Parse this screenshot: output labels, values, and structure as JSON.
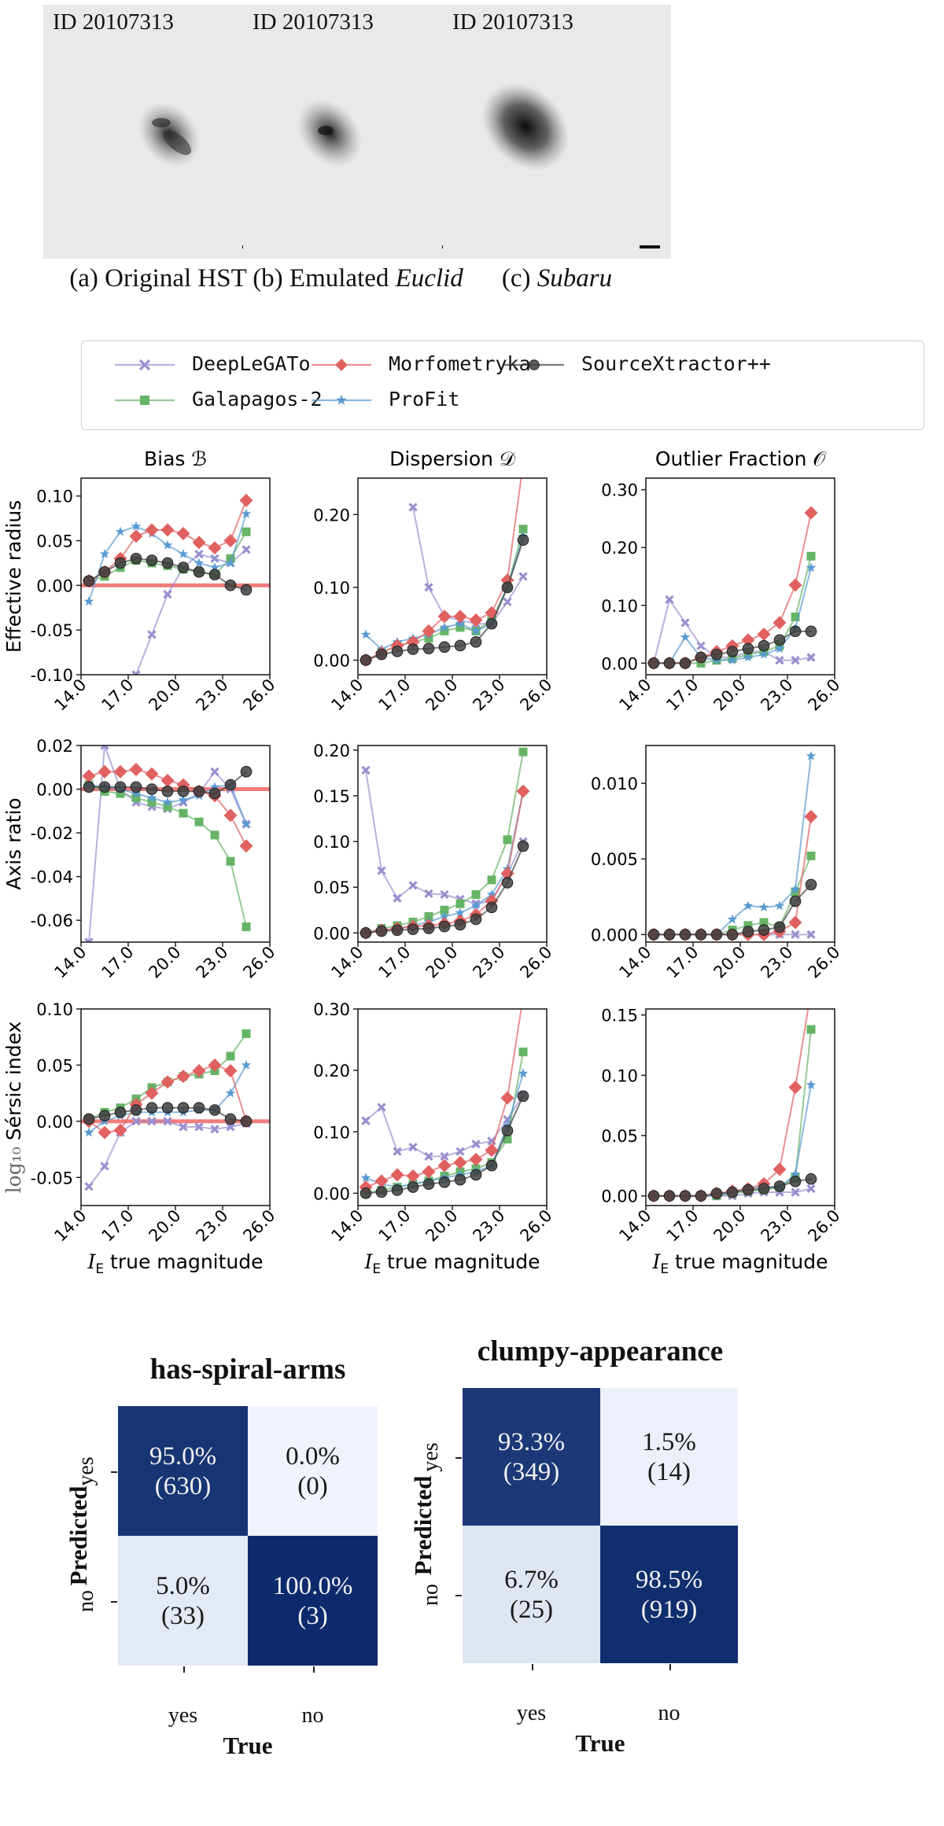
{
  "thumbnails": [
    {
      "id": "ID 20107313",
      "caption_prefix": "(a) ",
      "caption_main": "Original HST",
      "caption_italic": ""
    },
    {
      "id": "ID 20107313",
      "caption_prefix": "(b) ",
      "caption_main": "Emulated ",
      "caption_italic": "Euclid"
    },
    {
      "id": "ID 20107313",
      "caption_prefix": "(c) ",
      "caption_main": "",
      "caption_italic": "Subaru"
    }
  ],
  "legend": [
    {
      "name": "DeepLeGATo",
      "color": "#9a8fce",
      "marker": "x"
    },
    {
      "name": "Morfometryka",
      "color": "#e06160",
      "marker": "D"
    },
    {
      "name": "SourceXtractor++",
      "color": "#404040",
      "marker": "o"
    },
    {
      "name": "Galapagos-2",
      "color": "#66b466",
      "marker": "s"
    },
    {
      "name": "ProFit",
      "color": "#5a9ad2",
      "marker": "*"
    }
  ],
  "chart_data": {
    "type": "line",
    "column_titles": [
      "Bias ℬ",
      "Dispersion 𝒟",
      "Outlier Fraction 𝒪"
    ],
    "row_labels": [
      "Effective radius",
      "Axis ratio",
      "Sérsic index"
    ],
    "row_label_prefix": [
      "",
      "",
      "log₁₀"
    ],
    "xlabel_italic": "I",
    "xlabel_sub": "E",
    "xlabel_rest": " true magnitude",
    "xticks": [
      "14.0",
      "17.0",
      "20.0",
      "23.0",
      "26.0"
    ],
    "x": [
      14.5,
      15.5,
      16.5,
      17.5,
      18.5,
      19.5,
      20.5,
      21.5,
      22.5,
      23.5,
      24.5
    ],
    "panels": [
      {
        "row": 0,
        "col": 0,
        "ylim": [
          -0.1,
          0.12
        ],
        "yticks": [
          "0.10",
          "0.05",
          "0.00",
          "-0.05",
          "-0.10"
        ],
        "ytickvals": [
          0.1,
          0.05,
          0,
          -0.05,
          -0.1
        ],
        "hline": true,
        "series": {
          "DeepLeGATo": [
            null,
            null,
            null,
            -0.1,
            -0.055,
            -0.01,
            0.02,
            0.035,
            0.03,
            0.025,
            0.04
          ],
          "Morfometryka": [
            0.005,
            0.015,
            0.03,
            0.055,
            0.062,
            0.062,
            0.058,
            0.048,
            0.042,
            0.05,
            0.095
          ],
          "SourceXtractor++": [
            0.005,
            0.015,
            0.025,
            0.03,
            0.028,
            0.025,
            0.02,
            0.015,
            0.012,
            0.0,
            -0.005
          ],
          "Galapagos-2": [
            0.005,
            0.01,
            0.02,
            0.028,
            0.025,
            0.022,
            0.018,
            0.015,
            0.012,
            0.03,
            0.06
          ],
          "ProFit": [
            -0.018,
            0.035,
            0.06,
            0.066,
            0.058,
            0.045,
            0.035,
            0.025,
            0.02,
            0.025,
            0.08
          ]
        }
      },
      {
        "row": 0,
        "col": 1,
        "ylim": [
          -0.02,
          0.25
        ],
        "yticks": [
          "0.20",
          "0.10",
          "0.00"
        ],
        "ytickvals": [
          0.2,
          0.1,
          0
        ],
        "hline": false,
        "series": {
          "DeepLeGATo": [
            null,
            null,
            null,
            0.21,
            0.1,
            0.06,
            0.055,
            0.05,
            0.05,
            0.08,
            0.115
          ],
          "Morfometryka": [
            0.0,
            0.01,
            0.02,
            0.025,
            0.04,
            0.06,
            0.06,
            0.055,
            0.065,
            0.11,
            0.27
          ],
          "SourceXtractor++": [
            0.0,
            0.008,
            0.012,
            0.015,
            0.016,
            0.018,
            0.02,
            0.025,
            0.05,
            0.1,
            0.165
          ],
          "Galapagos-2": [
            0.0,
            0.01,
            0.02,
            0.025,
            0.03,
            0.04,
            0.045,
            0.04,
            0.055,
            0.1,
            0.18
          ],
          "ProFit": [
            0.035,
            0.015,
            0.025,
            0.03,
            0.035,
            0.045,
            0.05,
            0.04,
            0.05,
            0.1,
            0.17
          ]
        }
      },
      {
        "row": 0,
        "col": 2,
        "ylim": [
          -0.02,
          0.32
        ],
        "yticks": [
          "0.30",
          "0.20",
          "0.10",
          "0.00"
        ],
        "ytickvals": [
          0.3,
          0.2,
          0.1,
          0
        ],
        "hline": false,
        "series": {
          "DeepLeGATo": [
            0.0,
            0.11,
            0.07,
            0.03,
            0.01,
            0.01,
            0.02,
            0.02,
            0.005,
            0.005,
            0.01
          ],
          "Morfometryka": [
            0.0,
            0.0,
            0.0,
            0.01,
            0.02,
            0.03,
            0.04,
            0.05,
            0.07,
            0.135,
            0.26
          ],
          "SourceXtractor++": [
            0.0,
            0.0,
            0.0,
            0.01,
            0.015,
            0.02,
            0.025,
            0.03,
            0.04,
            0.055,
            0.055
          ],
          "Galapagos-2": [
            0.0,
            0.0,
            0.0,
            0.0,
            0.005,
            0.008,
            0.015,
            0.02,
            0.03,
            0.08,
            0.185
          ],
          "ProFit": [
            0.0,
            0.0,
            0.045,
            0.01,
            0.005,
            0.005,
            0.01,
            0.015,
            0.025,
            0.06,
            0.165
          ]
        }
      },
      {
        "row": 1,
        "col": 0,
        "ylim": [
          -0.07,
          0.02
        ],
        "yticks": [
          "0.02",
          "0.00",
          "-0.02",
          "-0.04",
          "-0.06"
        ],
        "ytickvals": [
          0.02,
          0,
          -0.02,
          -0.04,
          -0.06
        ],
        "hline": true,
        "series": {
          "DeepLeGATo": [
            -0.07,
            0.02,
            0.0,
            -0.006,
            -0.008,
            -0.009,
            -0.006,
            -0.002,
            0.008,
            0.0,
            -0.016
          ],
          "Morfometryka": [
            0.006,
            0.008,
            0.008,
            0.009,
            0.007,
            0.004,
            0.002,
            -0.001,
            -0.003,
            -0.012,
            -0.026
          ],
          "SourceXtractor++": [
            0.001,
            0.001,
            0.001,
            0.001,
            0.0,
            -0.001,
            -0.001,
            -0.001,
            -0.002,
            0.002,
            0.008
          ],
          "Galapagos-2": [
            0.002,
            -0.001,
            -0.002,
            -0.004,
            -0.006,
            -0.008,
            -0.011,
            -0.015,
            -0.021,
            -0.033,
            -0.063
          ],
          "ProFit": [
            0.002,
            0.001,
            0.0,
            -0.002,
            -0.004,
            -0.006,
            -0.005,
            -0.003,
            0.001,
            0.002,
            -0.016
          ]
        }
      },
      {
        "row": 1,
        "col": 1,
        "ylim": [
          -0.01,
          0.205
        ],
        "yticks": [
          "0.20",
          "0.15",
          "0.10",
          "0.05",
          "0.00"
        ],
        "ytickvals": [
          0.2,
          0.15,
          0.1,
          0.05,
          0
        ],
        "hline": false,
        "series": {
          "DeepLeGATo": [
            0.178,
            0.068,
            0.038,
            0.052,
            0.043,
            0.042,
            0.037,
            0.032,
            0.035,
            0.065,
            0.1
          ],
          "Morfometryka": [
            0.0,
            0.003,
            0.005,
            0.007,
            0.008,
            0.01,
            0.013,
            0.02,
            0.035,
            0.065,
            0.155
          ],
          "SourceXtractor++": [
            0.0,
            0.002,
            0.003,
            0.004,
            0.005,
            0.007,
            0.009,
            0.015,
            0.028,
            0.055,
            0.095
          ],
          "Galapagos-2": [
            0.0,
            0.005,
            0.008,
            0.012,
            0.018,
            0.025,
            0.032,
            0.042,
            0.058,
            0.102,
            0.198
          ],
          "ProFit": [
            0.0,
            0.003,
            0.005,
            0.008,
            0.012,
            0.018,
            0.022,
            0.03,
            0.042,
            0.07,
            0.155
          ]
        }
      },
      {
        "row": 1,
        "col": 2,
        "ylim": [
          -0.0005,
          0.0125
        ],
        "yticks": [
          "0.010",
          "0.005",
          "0.000"
        ],
        "ytickvals": [
          0.01,
          0.005,
          0
        ],
        "hline": false,
        "series": {
          "DeepLeGATo": [
            0.0,
            0.0,
            0.0,
            0.0,
            0.0,
            0.0,
            0.0,
            0.0,
            0.0,
            0.0,
            0.0
          ],
          "Morfometryka": [
            0.0,
            0.0,
            0.0,
            0.0,
            0.0,
            0.0,
            0.0,
            0.0,
            0.0002,
            0.0008,
            0.0078
          ],
          "SourceXtractor++": [
            0.0,
            0.0,
            0.0,
            0.0,
            0.0,
            0.0,
            0.0002,
            0.0003,
            0.0005,
            0.0022,
            0.0033
          ],
          "Galapagos-2": [
            0.0,
            0.0,
            0.0,
            0.0,
            0.0,
            0.0003,
            0.0006,
            0.0008,
            0.0005,
            0.0028,
            0.0052
          ],
          "ProFit": [
            0.0,
            0.0,
            0.0,
            0.0,
            0.0,
            0.001,
            0.0019,
            0.0018,
            0.0019,
            0.003,
            0.0118
          ]
        }
      },
      {
        "row": 2,
        "col": 0,
        "ylim": [
          -0.075,
          0.1
        ],
        "yticks": [
          "0.10",
          "0.05",
          "0.00",
          "-0.05"
        ],
        "ytickvals": [
          0.1,
          0.05,
          0,
          -0.05
        ],
        "hline": true,
        "series": {
          "DeepLeGATo": [
            -0.058,
            -0.04,
            -0.01,
            0.0,
            0.0,
            0.0,
            -0.005,
            -0.005,
            -0.007,
            -0.005,
            -0.002
          ],
          "Morfometryka": [
            0.0,
            -0.01,
            -0.008,
            0.015,
            0.025,
            0.035,
            0.04,
            0.045,
            0.05,
            0.045,
            0.0
          ],
          "SourceXtractor++": [
            0.002,
            0.005,
            0.008,
            0.01,
            0.012,
            0.012,
            0.012,
            0.012,
            0.01,
            0.002,
            0.0
          ],
          "Galapagos-2": [
            0.002,
            0.008,
            0.012,
            0.02,
            0.03,
            0.035,
            0.04,
            0.042,
            0.045,
            0.058,
            0.078
          ],
          "ProFit": [
            -0.01,
            0.0,
            0.005,
            0.008,
            0.008,
            0.008,
            0.008,
            0.01,
            0.01,
            0.025,
            0.05
          ]
        }
      },
      {
        "row": 2,
        "col": 1,
        "ylim": [
          -0.02,
          0.3
        ],
        "yticks": [
          "0.30",
          "0.20",
          "0.10",
          "0.00"
        ],
        "ytickvals": [
          0.3,
          0.2,
          0.1,
          0
        ],
        "hline": false,
        "series": {
          "DeepLeGATo": [
            0.118,
            0.14,
            0.068,
            0.075,
            0.06,
            0.06,
            0.068,
            0.08,
            0.085,
            0.12,
            0.16
          ],
          "Morfometryka": [
            0.01,
            0.02,
            0.03,
            0.028,
            0.035,
            0.045,
            0.05,
            0.055,
            0.07,
            0.155,
            0.32
          ],
          "SourceXtractor++": [
            0.0,
            0.002,
            0.005,
            0.01,
            0.015,
            0.018,
            0.022,
            0.03,
            0.045,
            0.102,
            0.158
          ],
          "Galapagos-2": [
            0.0,
            0.005,
            0.01,
            0.015,
            0.02,
            0.028,
            0.035,
            0.04,
            0.05,
            0.088,
            0.23
          ],
          "ProFit": [
            0.025,
            0.015,
            0.01,
            0.015,
            0.02,
            0.025,
            0.03,
            0.035,
            0.045,
            0.11,
            0.195
          ]
        }
      },
      {
        "row": 2,
        "col": 2,
        "ylim": [
          -0.008,
          0.155
        ],
        "yticks": [
          "0.15",
          "0.10",
          "0.05",
          "0.00"
        ],
        "ytickvals": [
          0.15,
          0.1,
          0.05,
          0
        ],
        "hline": false,
        "series": {
          "DeepLeGATo": [
            0.0,
            0.0,
            0.0,
            0.0,
            0.0,
            0.0,
            0.002,
            0.003,
            0.003,
            0.003,
            0.006
          ],
          "Morfometryka": [
            0.0,
            0.0,
            0.0,
            0.0,
            0.002,
            0.004,
            0.006,
            0.01,
            0.022,
            0.09,
            0.17
          ],
          "SourceXtractor++": [
            0.0,
            0.0,
            0.0,
            0.0,
            0.002,
            0.003,
            0.005,
            0.006,
            0.008,
            0.012,
            0.014
          ],
          "Galapagos-2": [
            0.0,
            0.0,
            0.0,
            0.0,
            0.0,
            0.002,
            0.004,
            0.005,
            0.007,
            0.015,
            0.138
          ],
          "ProFit": [
            0.0,
            0.0,
            0.0,
            0.0,
            0.0,
            0.003,
            0.006,
            0.008,
            0.007,
            0.018,
            0.092
          ]
        }
      }
    ]
  },
  "confusion_matrices": [
    {
      "title": "has-spiral-arms",
      "cells": [
        [
          "95.0%",
          "(630)"
        ],
        [
          "0.0%",
          "(0)"
        ],
        [
          "5.0%",
          "(33)"
        ],
        [
          "100.0%",
          "(3)"
        ]
      ],
      "fractions": [
        0.95,
        0.0,
        0.05,
        1.0
      ],
      "ylabel": "Predicted",
      "xlabel": "True",
      "yticks": [
        "yes",
        "no"
      ],
      "xticks": [
        "yes",
        "no"
      ]
    },
    {
      "title": "clumpy-appearance",
      "cells": [
        [
          "93.3%",
          "(349)"
        ],
        [
          "1.5%",
          "(14)"
        ],
        [
          "6.7%",
          "(25)"
        ],
        [
          "98.5%",
          "(919)"
        ]
      ],
      "fractions": [
        0.933,
        0.015,
        0.067,
        0.985
      ],
      "ylabel": "Predicted",
      "xlabel": "True",
      "yticks": [
        "yes",
        "no"
      ],
      "xticks": [
        "yes",
        "no"
      ]
    }
  ]
}
